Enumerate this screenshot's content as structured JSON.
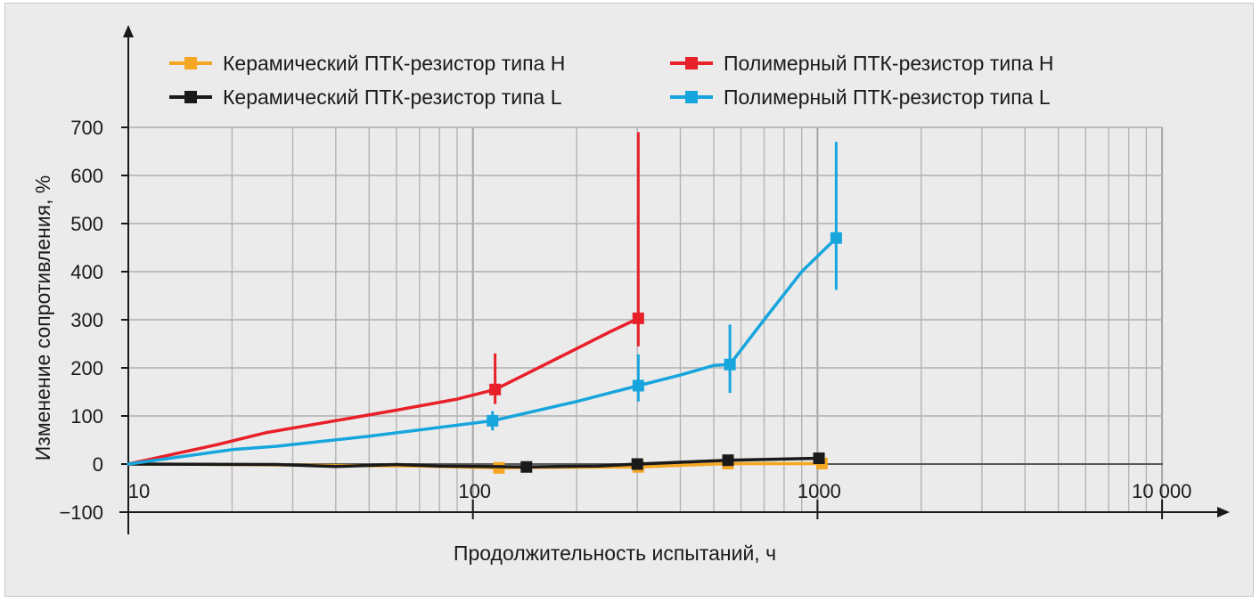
{
  "chart_data": {
    "type": "line",
    "xlabel": "Продолжительность испытаний, ч",
    "ylabel": "Изменение сопротивления, %",
    "xscale": "log",
    "xlim": [
      10,
      10000
    ],
    "ylim": [
      -100,
      700
    ],
    "yticks": [
      -100,
      0,
      100,
      200,
      300,
      400,
      500,
      600,
      700
    ],
    "ytick_labels": [
      "−100",
      "0",
      "100",
      "200",
      "300",
      "400",
      "500",
      "600",
      "700"
    ],
    "xticks": [
      10,
      100,
      1000,
      10000
    ],
    "xtick_labels": [
      "10",
      "100",
      "1000",
      "10 000"
    ],
    "grid": true,
    "legend_position": "top",
    "series": [
      {
        "name": "Керамический ПТК-резистор типа H",
        "color": "#f5a623",
        "line": [
          [
            10,
            0
          ],
          [
            20,
            -1
          ],
          [
            40,
            -3
          ],
          [
            70,
            -4
          ],
          [
            119,
            -8
          ],
          [
            160,
            -7
          ],
          [
            302,
            -6
          ],
          [
            550,
            1
          ],
          [
            1030,
            1
          ]
        ],
        "markers": [
          [
            119,
            -8
          ],
          [
            302,
            -6
          ],
          [
            550,
            1
          ],
          [
            1030,
            1
          ]
        ],
        "errors": []
      },
      {
        "name": "Керамический ПТК-резистор типа L",
        "color": "#1a1a1a",
        "line": [
          [
            10,
            0
          ],
          [
            27,
            -1
          ],
          [
            40,
            -5
          ],
          [
            60,
            -1
          ],
          [
            80,
            -4
          ],
          [
            143,
            -6
          ],
          [
            230,
            -4
          ],
          [
            300,
            0
          ],
          [
            550,
            8
          ],
          [
            1010,
            12
          ]
        ],
        "markers": [
          [
            143,
            -6
          ],
          [
            300,
            0
          ],
          [
            550,
            8
          ],
          [
            1010,
            12
          ]
        ],
        "errors": []
      },
      {
        "name": "Полимерный ПТК-резистор типа H",
        "color": "#e8202a",
        "line": [
          [
            10,
            0
          ],
          [
            18,
            40
          ],
          [
            25,
            65
          ],
          [
            60,
            112
          ],
          [
            90,
            135
          ],
          [
            116,
            155
          ],
          [
            150,
            195
          ],
          [
            200,
            240
          ],
          [
            250,
            275
          ],
          [
            302,
            303
          ]
        ],
        "markers": [
          [
            116,
            155
          ],
          [
            302,
            303
          ]
        ],
        "errors": [
          {
            "x": 116,
            "y": 155,
            "low": 125,
            "high": 230
          },
          {
            "x": 302,
            "y": 303,
            "low": 245,
            "high": 690
          }
        ]
      },
      {
        "name": "Полимерный ПТК-резистор типа L",
        "color": "#17a5de",
        "line": [
          [
            10,
            0
          ],
          [
            20,
            30
          ],
          [
            27,
            37
          ],
          [
            50,
            58
          ],
          [
            114,
            90
          ],
          [
            200,
            130
          ],
          [
            250,
            148
          ],
          [
            302,
            163
          ],
          [
            400,
            185
          ],
          [
            500,
            205
          ],
          [
            557,
            207
          ],
          [
            700,
            300
          ],
          [
            900,
            400
          ],
          [
            1133,
            470
          ]
        ],
        "markers": [
          [
            114,
            90
          ],
          [
            302,
            163
          ],
          [
            557,
            207
          ],
          [
            1133,
            470
          ]
        ],
        "errors": [
          {
            "x": 114,
            "y": 90,
            "low": 70,
            "high": 110
          },
          {
            "x": 302,
            "y": 163,
            "low": 130,
            "high": 228
          },
          {
            "x": 557,
            "y": 207,
            "low": 148,
            "high": 290
          },
          {
            "x": 1133,
            "y": 470,
            "low": 362,
            "high": 670
          }
        ]
      }
    ]
  }
}
